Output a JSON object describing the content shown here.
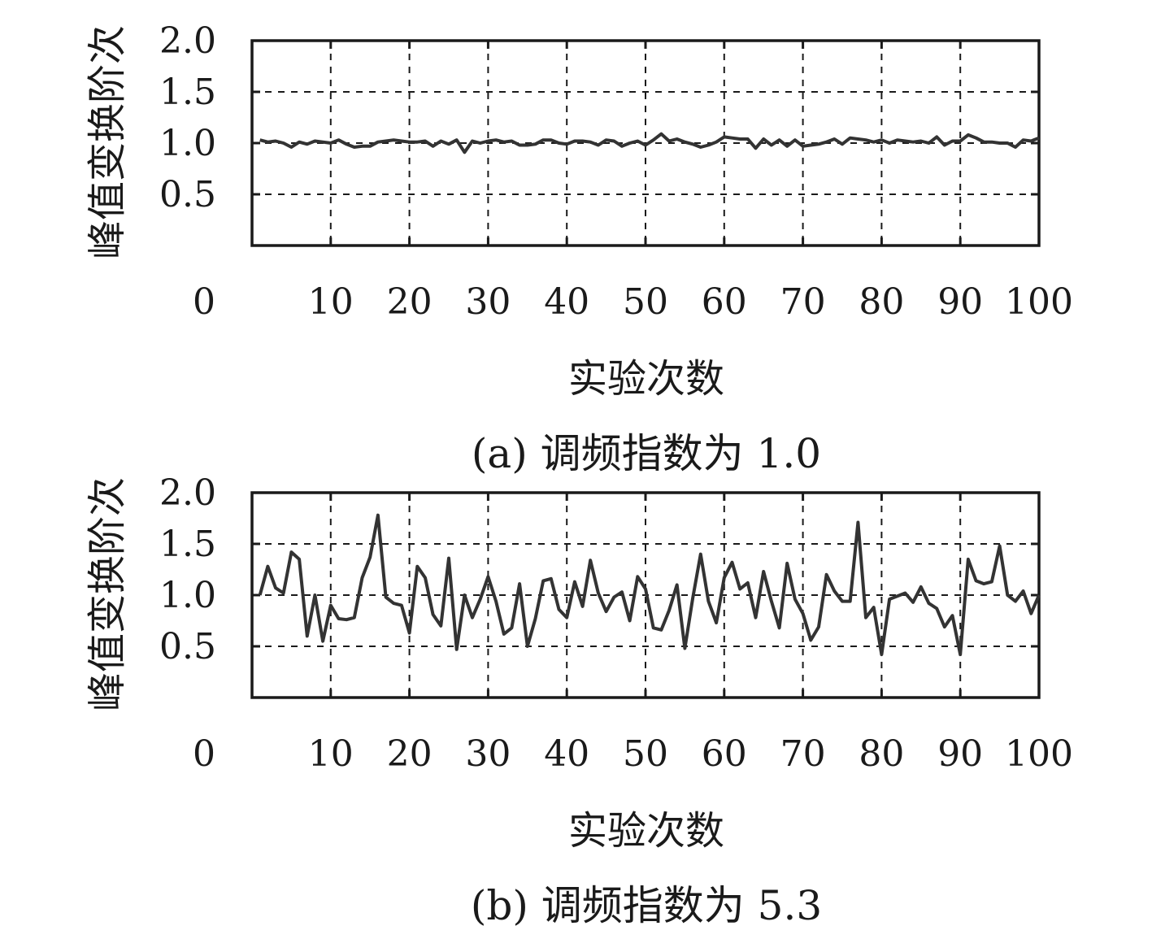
{
  "chart_data": [
    {
      "type": "line",
      "caption": "(a) 调频指数为 1.0",
      "xlabel": "实验次数",
      "ylabel": "峰值变换阶次",
      "xlim": [
        0,
        100
      ],
      "ylim": [
        0,
        2.0
      ],
      "x_ticks": [
        "0",
        "10",
        "20",
        "30",
        "40",
        "50",
        "60",
        "70",
        "80",
        "90",
        "100"
      ],
      "y_ticks": [
        "0.5",
        "1.0",
        "1.5",
        "2.0"
      ],
      "grid": true,
      "series": [
        {
          "color": "#333333",
          "x": [
            1,
            2,
            3,
            4,
            5,
            6,
            7,
            8,
            9,
            10,
            11,
            12,
            13,
            14,
            15,
            16,
            17,
            18,
            19,
            20,
            21,
            22,
            23,
            24,
            25,
            26,
            27,
            28,
            29,
            30,
            31,
            32,
            33,
            34,
            35,
            36,
            37,
            38,
            39,
            40,
            41,
            42,
            43,
            44,
            45,
            46,
            47,
            48,
            49,
            50,
            51,
            52,
            53,
            54,
            55,
            56,
            57,
            58,
            59,
            60,
            61,
            62,
            63,
            64,
            65,
            66,
            67,
            68,
            69,
            70,
            71,
            72,
            73,
            74,
            75,
            76,
            77,
            78,
            79,
            80,
            81,
            82,
            83,
            84,
            85,
            86,
            87,
            88,
            89,
            90,
            91,
            92,
            93,
            94,
            95,
            96,
            97,
            98,
            99,
            100
          ],
          "values": [
            1.03,
            1.01,
            1.02,
            1.0,
            0.96,
            1.01,
            0.99,
            1.02,
            1.01,
            1.0,
            1.03,
            0.99,
            0.96,
            0.97,
            0.97,
            1.01,
            1.02,
            1.03,
            1.02,
            1.01,
            1.01,
            1.02,
            0.97,
            1.02,
            0.99,
            1.03,
            0.91,
            1.02,
            1.0,
            1.02,
            1.03,
            1.01,
            1.02,
            0.98,
            0.98,
            0.99,
            1.03,
            1.03,
            1.0,
            0.99,
            1.02,
            1.02,
            1.01,
            0.98,
            1.03,
            1.02,
            0.97,
            1.0,
            1.02,
            0.98,
            1.03,
            1.09,
            1.02,
            1.04,
            1.01,
            0.99,
            0.96,
            0.98,
            1.01,
            1.06,
            1.05,
            1.04,
            1.04,
            0.95,
            1.04,
            0.98,
            1.03,
            0.97,
            1.03,
            0.97,
            0.98,
            0.99,
            1.01,
            1.04,
            0.99,
            1.05,
            1.04,
            1.03,
            1.01,
            1.03,
            1.0,
            1.03,
            1.02,
            1.01,
            1.02,
            1.0,
            1.06,
            0.98,
            1.02,
            1.02,
            1.08,
            1.05,
            1.01,
            1.01,
            1.0,
            1.0,
            0.96,
            1.03,
            1.02,
            1.05
          ]
        }
      ]
    },
    {
      "type": "line",
      "caption": "(b) 调频指数为 5.3",
      "xlabel": "实验次数",
      "ylabel": "峰值变换阶次",
      "xlim": [
        0,
        100
      ],
      "ylim": [
        0,
        2.0
      ],
      "x_ticks": [
        "0",
        "10",
        "20",
        "30",
        "40",
        "50",
        "60",
        "70",
        "80",
        "90",
        "100"
      ],
      "y_ticks": [
        "0.5",
        "1.0",
        "1.5",
        "2.0"
      ],
      "grid": true,
      "series": [
        {
          "color": "#333333",
          "x": [
            1,
            2,
            3,
            4,
            5,
            6,
            7,
            8,
            9,
            10,
            11,
            12,
            13,
            14,
            15,
            16,
            17,
            18,
            19,
            20,
            21,
            22,
            23,
            24,
            25,
            26,
            27,
            28,
            29,
            30,
            31,
            32,
            33,
            34,
            35,
            36,
            37,
            38,
            39,
            40,
            41,
            42,
            43,
            44,
            45,
            46,
            47,
            48,
            49,
            50,
            51,
            52,
            53,
            54,
            55,
            56,
            57,
            58,
            59,
            60,
            61,
            62,
            63,
            64,
            65,
            66,
            67,
            68,
            69,
            70,
            71,
            72,
            73,
            74,
            75,
            76,
            77,
            78,
            79,
            80,
            81,
            82,
            83,
            84,
            85,
            86,
            87,
            88,
            89,
            90,
            91,
            92,
            93,
            94,
            95,
            96,
            97,
            98,
            99,
            100
          ],
          "values": [
            1.0,
            1.28,
            1.07,
            1.02,
            1.42,
            1.35,
            0.6,
            1.0,
            0.55,
            0.9,
            0.77,
            0.76,
            0.78,
            1.17,
            1.37,
            1.78,
            0.98,
            0.92,
            0.9,
            0.63,
            1.28,
            1.17,
            0.81,
            0.7,
            1.36,
            0.47,
            1.0,
            0.78,
            0.96,
            1.18,
            0.94,
            0.62,
            0.68,
            1.11,
            0.5,
            0.77,
            1.14,
            1.16,
            0.86,
            0.78,
            1.13,
            0.89,
            1.34,
            1.02,
            0.84,
            0.98,
            1.03,
            0.75,
            1.18,
            1.06,
            0.68,
            0.66,
            0.85,
            1.1,
            0.48,
            0.97,
            1.4,
            0.94,
            0.73,
            1.17,
            1.32,
            1.06,
            1.12,
            0.78,
            1.23,
            0.94,
            0.68,
            1.31,
            0.96,
            0.82,
            0.56,
            0.69,
            1.2,
            1.04,
            0.94,
            0.94,
            1.71,
            0.78,
            0.88,
            0.42,
            0.96,
            0.99,
            1.02,
            0.93,
            1.08,
            0.92,
            0.87,
            0.69,
            0.8,
            0.42,
            1.35,
            1.14,
            1.11,
            1.13,
            1.48,
            1.0,
            0.94,
            1.04,
            0.82,
            1.0
          ]
        }
      ]
    }
  ]
}
